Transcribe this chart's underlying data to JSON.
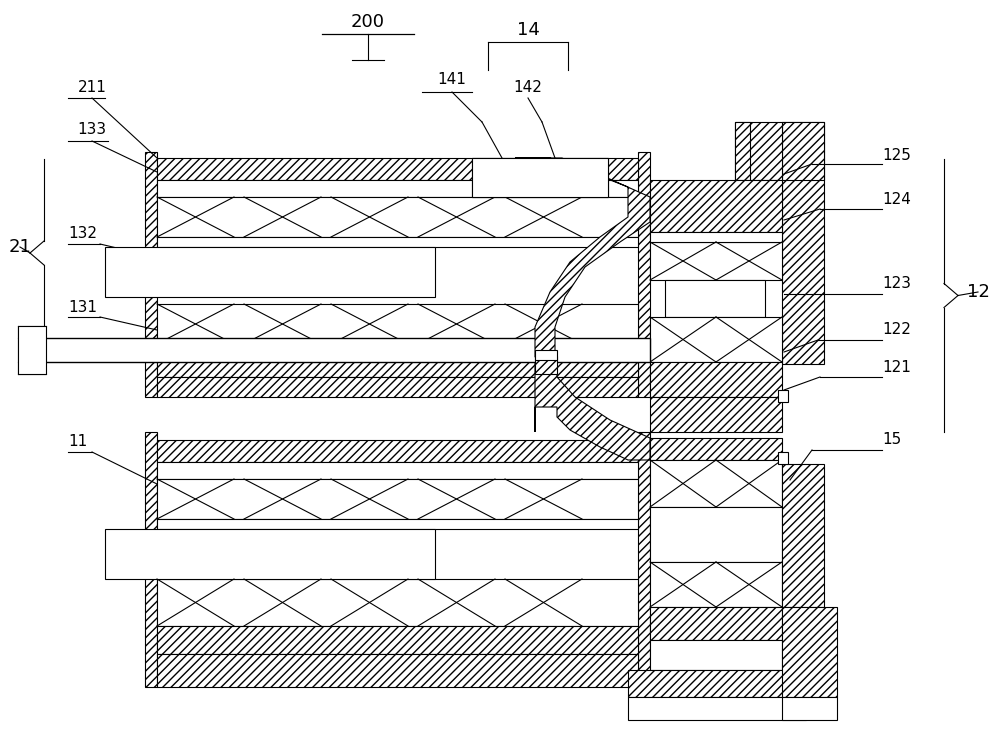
{
  "bg_color": "#ffffff",
  "line_color": "#000000",
  "figsize": [
    10.0,
    7.52
  ],
  "dpi": 100,
  "xlim": [
    0,
    10
  ],
  "ylim": [
    0,
    7.52
  ]
}
